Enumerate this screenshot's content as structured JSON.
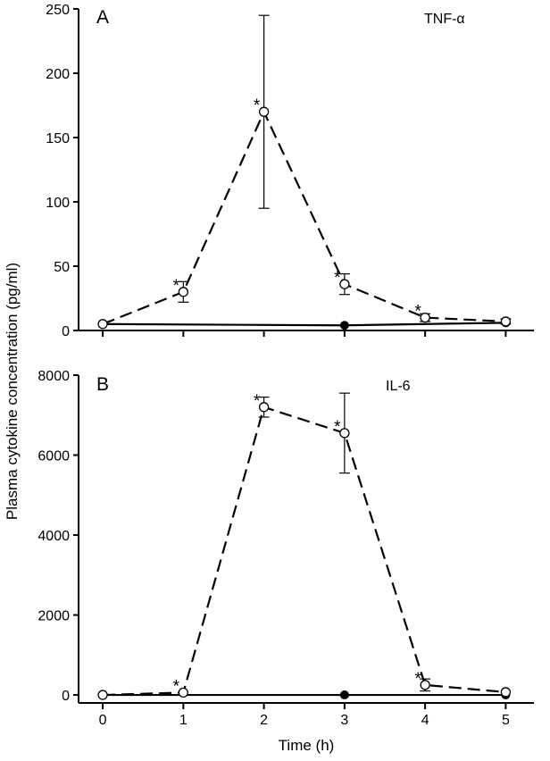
{
  "chart_data": [
    {
      "type": "line",
      "panel_letter": "A",
      "title": "TNF-α",
      "xlabel": "",
      "ylabel": "",
      "xlim": [
        -0.3,
        5.35
      ],
      "ylim": [
        0,
        250
      ],
      "x": [
        0,
        1,
        2,
        3,
        4,
        5
      ],
      "x_ticks": [
        0,
        1,
        2,
        3,
        4,
        5
      ],
      "x_tick_labels": false,
      "y_ticks": [
        0,
        50,
        100,
        150,
        200,
        250
      ],
      "y_tick_labels": [
        "0",
        "50",
        "100",
        "150",
        "200",
        "250"
      ],
      "series": [
        {
          "marker": "open-circle",
          "line": "dashed",
          "values": [
            5,
            30,
            170,
            36,
            10,
            7
          ],
          "err": [
            0,
            8,
            75,
            8,
            3,
            2
          ],
          "significance": [
            "",
            "*",
            "*",
            "*",
            "*",
            ""
          ]
        },
        {
          "marker": "filled-circle",
          "line": "solid",
          "values": [
            5,
            null,
            null,
            4,
            null,
            6
          ],
          "err": [
            0,
            0,
            0,
            0,
            0,
            0
          ],
          "significance": [
            "",
            "",
            "",
            "",
            "",
            ""
          ]
        }
      ]
    },
    {
      "type": "line",
      "panel_letter": "B",
      "title": "IL-6",
      "xlabel": "Time (h)",
      "ylabel": "",
      "xlim": [
        -0.3,
        5.35
      ],
      "ylim": [
        -200,
        8000
      ],
      "x": [
        0,
        1,
        2,
        3,
        4,
        5
      ],
      "x_ticks": [
        0,
        1,
        2,
        3,
        4,
        5
      ],
      "x_tick_labels": [
        "0",
        "1",
        "2",
        "3",
        "4",
        "5"
      ],
      "y_ticks": [
        0,
        2000,
        4000,
        6000,
        8000
      ],
      "y_tick_labels": [
        "0",
        "2000",
        "4000",
        "6000",
        "8000"
      ],
      "series": [
        {
          "marker": "open-circle",
          "line": "dashed",
          "values": [
            0,
            60,
            7200,
            6550,
            250,
            70
          ],
          "err": [
            0,
            0,
            250,
            1000,
            150,
            0
          ],
          "significance": [
            "",
            "*",
            "*",
            "*",
            "*",
            ""
          ]
        },
        {
          "marker": "filled-circle",
          "line": "solid",
          "values": [
            0,
            null,
            null,
            0,
            null,
            0
          ],
          "err": [
            0,
            0,
            0,
            0,
            0,
            0
          ],
          "significance": [
            "",
            "",
            "",
            "",
            "",
            ""
          ]
        }
      ]
    }
  ],
  "shared_ylabel": "Plasma cytokine concentration (pg/ml)",
  "colors": {
    "ink": "#000000",
    "background": "#ffffff",
    "open_marker_fill": "#ffffff"
  }
}
